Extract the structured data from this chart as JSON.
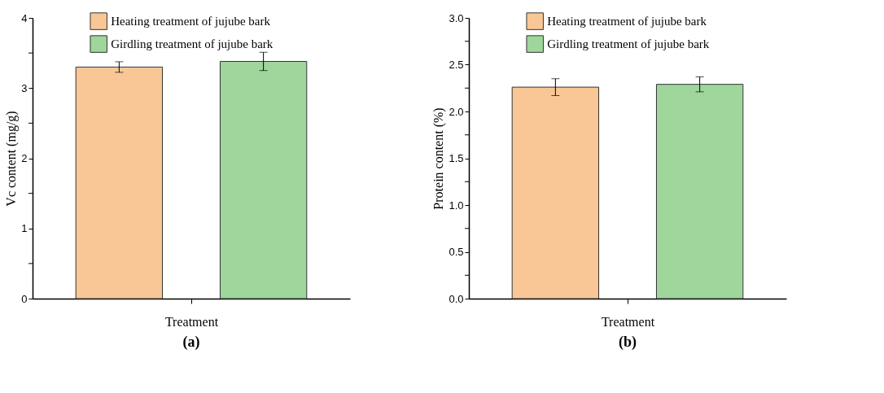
{
  "chart_data": [
    {
      "type": "bar",
      "xlabel": "Treatment",
      "ylabel": "Vc content (mg/g)",
      "categories": [
        null
      ],
      "series": [
        {
          "name": "Heating treatment of jujube bark",
          "color": "#f9c796",
          "values": [
            3.3
          ],
          "errors": [
            0.075
          ]
        },
        {
          "name": "Girdling treatment of jujube bark",
          "color": "#9ed69b",
          "values": [
            3.38
          ],
          "errors": [
            0.13
          ]
        }
      ],
      "ylim": [
        0,
        4
      ],
      "yticks": [
        0,
        {
          "value": 0.5,
          "label": null
        },
        1,
        {
          "value": 1.5,
          "label": null
        },
        2,
        {
          "value": 2.5,
          "label": null
        },
        3,
        {
          "value": 3.5,
          "label": null
        },
        4
      ],
      "legend": "top",
      "grid": false,
      "tick_labels": "y",
      "annotations": [
        "(a)"
      ]
    },
    {
      "type": "bar",
      "xlabel": "Treatment",
      "ylabel": "Protein content (%)",
      "categories": [
        null
      ],
      "series": [
        {
          "name": "Heating treatment of jujube bark",
          "color": "#f9c796",
          "values": [
            2.26
          ],
          "errors": [
            0.09
          ]
        },
        {
          "name": "Girdling treatment of jujube bark",
          "color": "#9ed69b",
          "values": [
            2.29
          ],
          "errors": [
            0.08
          ]
        }
      ],
      "ylim": [
        0,
        3
      ],
      "yticks": [
        {
          "value": 0.0,
          "label": "0.0"
        },
        {
          "value": 0.25,
          "label": null
        },
        {
          "value": 0.5,
          "label": "0.5"
        },
        {
          "value": 0.75,
          "label": null
        },
        {
          "value": 1.0,
          "label": "1.0"
        },
        {
          "value": 1.25,
          "label": null
        },
        {
          "value": 1.5,
          "label": "1.5"
        },
        {
          "value": 1.75,
          "label": null
        },
        {
          "value": 2.0,
          "label": "2.0"
        },
        {
          "value": 2.25,
          "label": null
        },
        {
          "value": 2.5,
          "label": "2.5"
        },
        {
          "value": 2.75,
          "label": null
        },
        {
          "value": 3.0,
          "label": "3.0"
        }
      ],
      "legend": "top",
      "grid": false,
      "tick_labels": "y",
      "annotations": [
        "(b)"
      ]
    }
  ]
}
